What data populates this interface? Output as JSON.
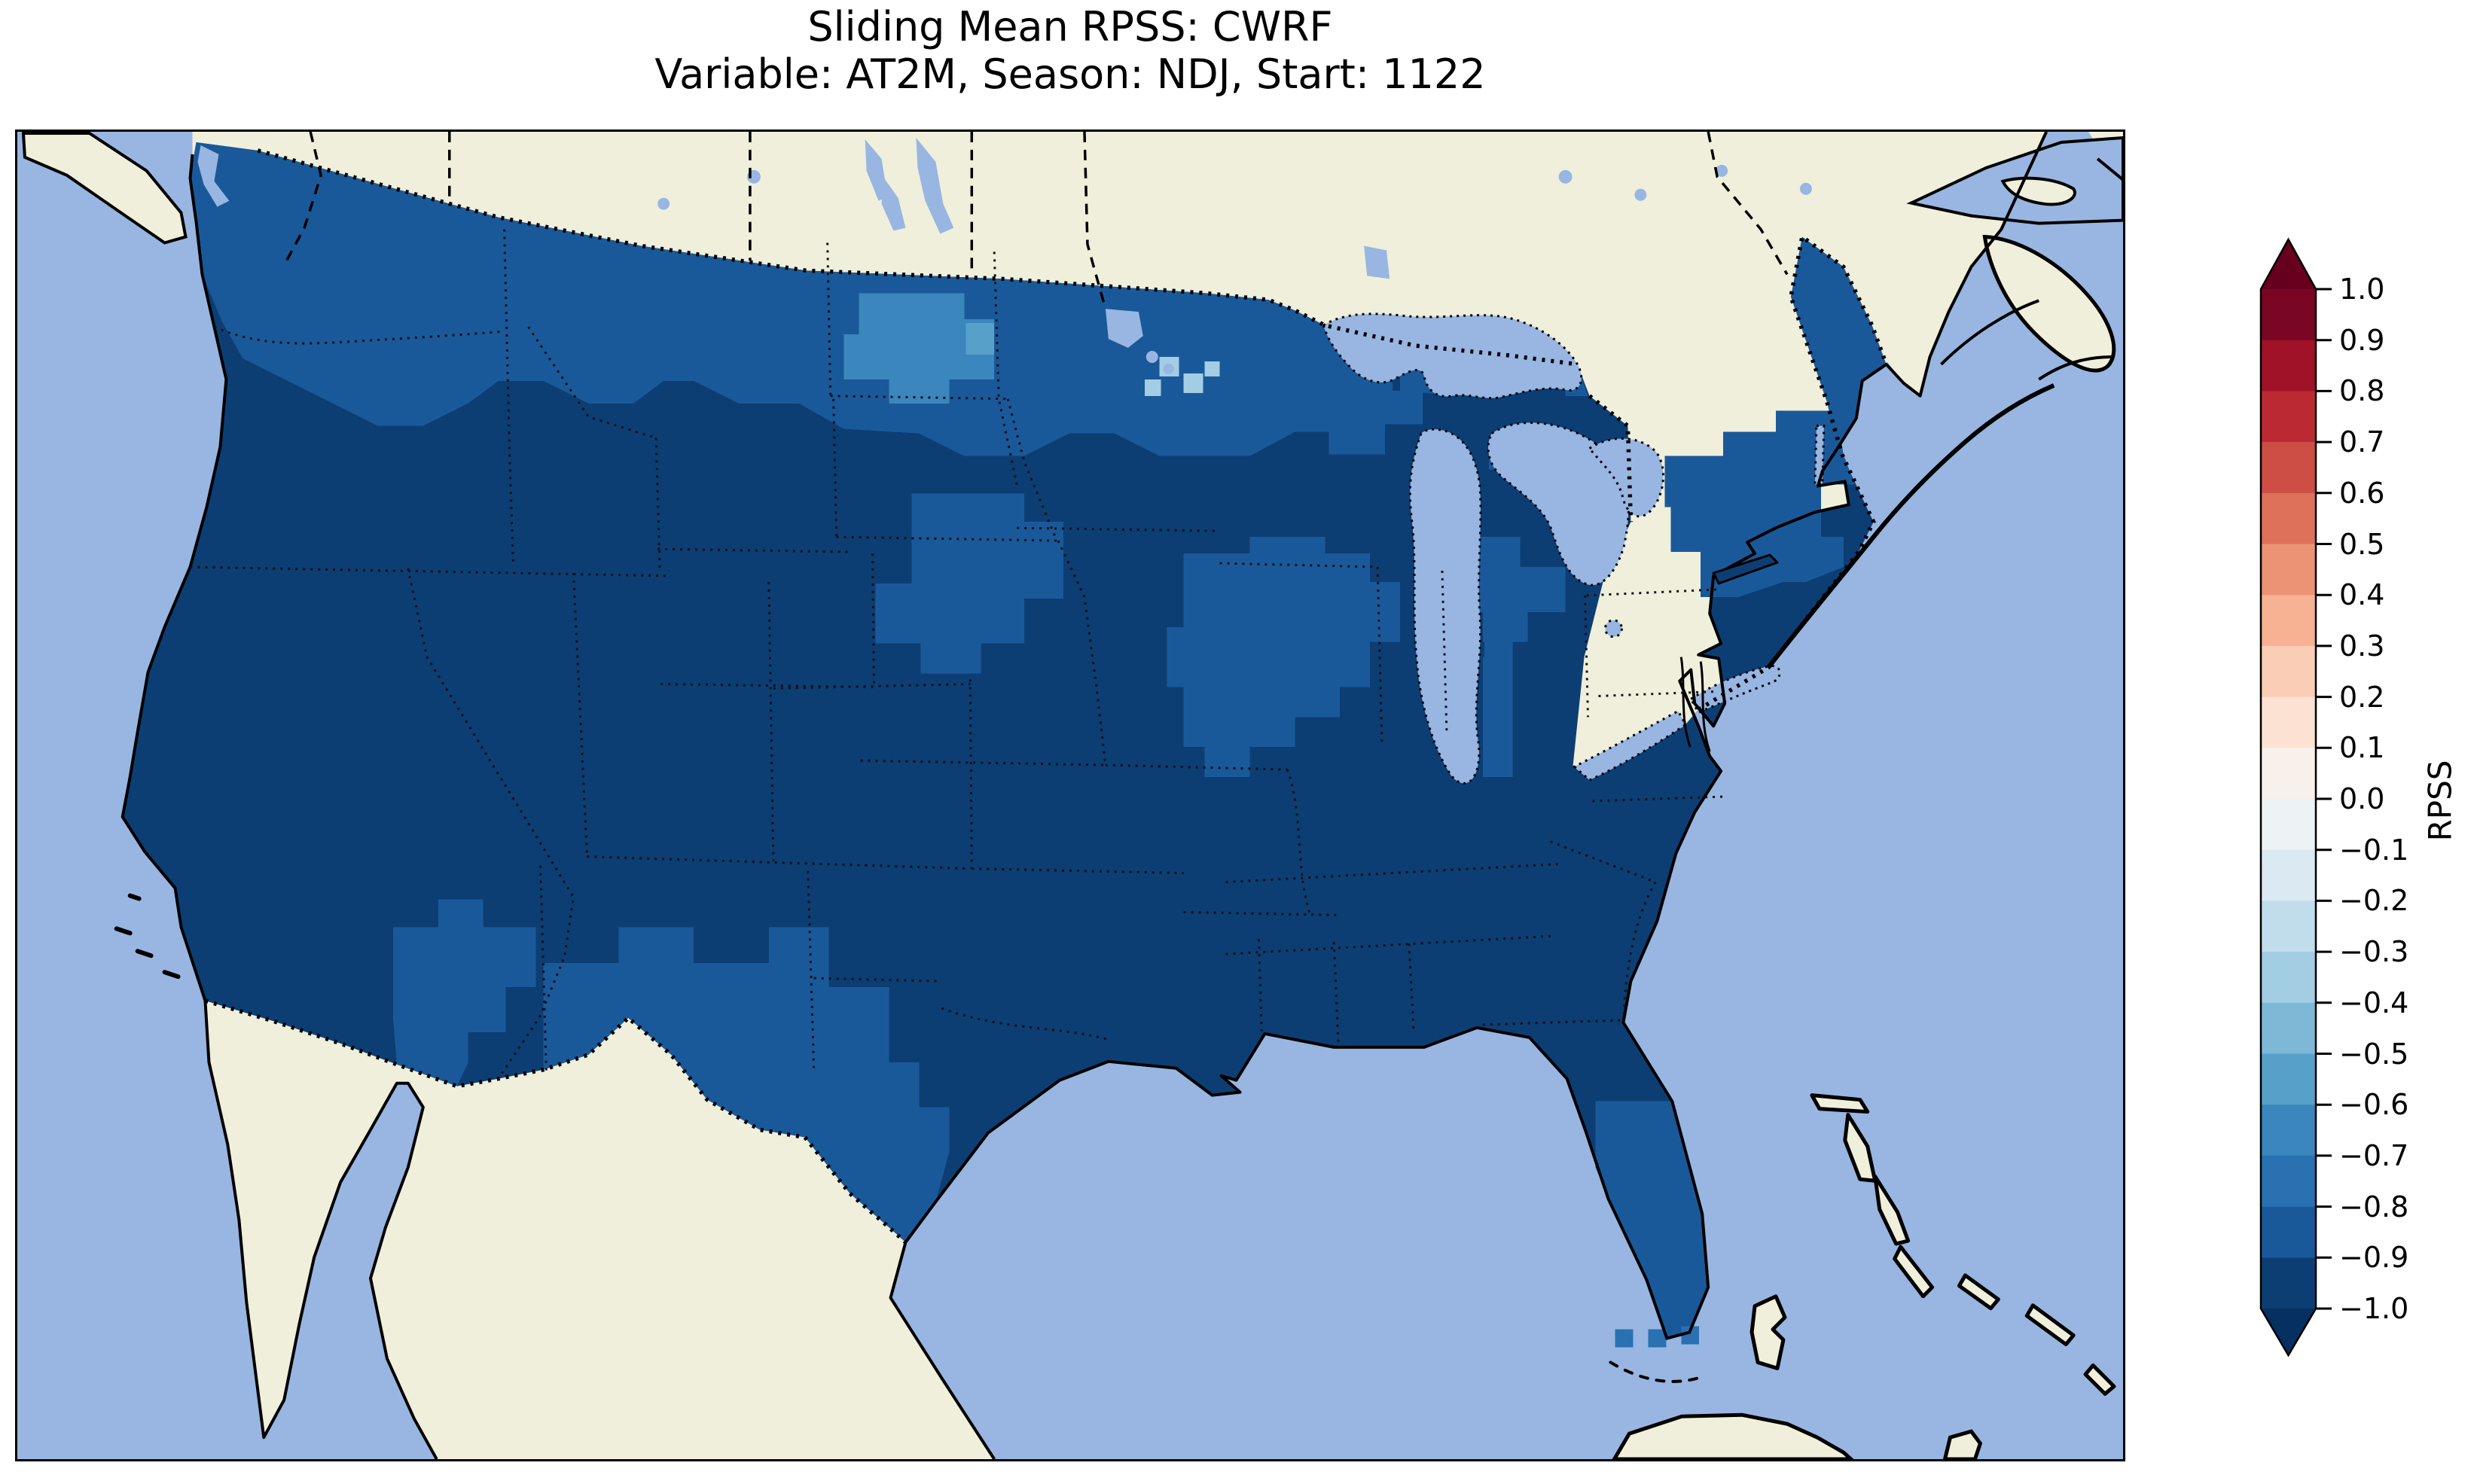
{
  "title": {
    "line1": "Sliding Mean RPSS: CWRF",
    "line2": "Variable: AT2M, Season: NDJ, Start: 1122"
  },
  "colorbar": {
    "label": "RPSS",
    "ticks": [
      "1.0",
      "0.9",
      "0.8",
      "0.7",
      "0.6",
      "0.5",
      "0.4",
      "0.3",
      "0.2",
      "0.1",
      "0.0",
      "−0.1",
      "−0.2",
      "−0.3",
      "−0.4",
      "−0.5",
      "−0.6",
      "−0.7",
      "−0.8",
      "−0.9",
      "−1.0"
    ],
    "band_colors_top_to_bottom": [
      "#790622",
      "#9f1228",
      "#bb2a33",
      "#cd4e44",
      "#dd715a",
      "#ec9375",
      "#f6b293",
      "#facdb6",
      "#fbe2d3",
      "#f8f0eb",
      "#edf2f5",
      "#dbe9f2",
      "#c1ddec",
      "#a2cde3",
      "#7eb8d7",
      "#57a0ca",
      "#3b86bc",
      "#2a71b2",
      "#1a5999",
      "#0c3e74"
    ],
    "over_color": "#67001f",
    "under_color": "#053061"
  },
  "map": {
    "ocean_color": "#98b6e1",
    "land_color": "#efefdb",
    "lake_color": "#98b6e1",
    "coastline_color": "#000000",
    "border_style": "dotted black",
    "fill_colors": {
      "rpss_-1.0_-0.9": "#0c3e74",
      "rpss_-0.9_-0.8": "#1a5999",
      "rpss_-0.8_-0.7": "#2a71b2",
      "rpss_-0.7_-0.6": "#3b86bc",
      "rpss_-0.6_-0.5": "#57a0ca",
      "rpss_-0.4_-0.3": "#a2cde3"
    }
  },
  "chart_data": {
    "type": "heatmap",
    "title": "Sliding Mean RPSS: CWRF",
    "subtitle": "Variable: AT2M, Season: NDJ, Start: 1122",
    "model": "CWRF",
    "variable": "AT2M",
    "season": "NDJ",
    "start": "1122",
    "colorbar_label": "RPSS",
    "colorbar_range": [
      -1.0,
      1.0
    ],
    "colorbar_tick_step": 0.1,
    "colormap": "RdBu_r, 20 discrete bins, arrow extensions both ends",
    "projection": "Lambert-conformal style map of CONUS; non-US land cream, ocean/lakes light periwinkle",
    "region_values": [
      {
        "region": "Most of CONUS (west, plains, south, mid-Atlantic, southeast)",
        "rpss_bin": "-1.0 to -0.9"
      },
      {
        "region": "Northern tier: N Washington, N Idaho, Montana border, Minnesota, N Wisconsin, upper Michigan",
        "rpss_bin": "-0.9 to -0.8"
      },
      {
        "region": "West-central North Dakota patch",
        "rpss_bin": "-0.7 to -0.6"
      },
      {
        "region": "Single cell inside North Dakota patch",
        "rpss_bin": "-0.6 to -0.5"
      },
      {
        "region": "South Dakota / Nebraska patch",
        "rpss_bin": "-0.9 to -0.8"
      },
      {
        "region": "Illinois - Indiana (Ohio valley) patch",
        "rpss_bin": "-0.9 to -0.8"
      },
      {
        "region": "Upstate New York, Vermont/New Hampshire, southern New England, Maine",
        "rpss_bin": "-0.9 to -0.8"
      },
      {
        "region": "Florida peninsula and Keys cells",
        "rpss_bin": "-0.9 to -0.8"
      },
      {
        "region": "SE Arizona patch and south New Mexico / west & south Texas border strip",
        "rpss_bin": "-0.9 to -0.8"
      },
      {
        "region": "Few cells near Lake of the Woods / NW Lake Superior border",
        "rpss_bin": "-0.4 to -0.3"
      }
    ],
    "notes": "All mapped RPSS values are negative (blue side of colorbar); no red (positive) areas appear on the map."
  }
}
